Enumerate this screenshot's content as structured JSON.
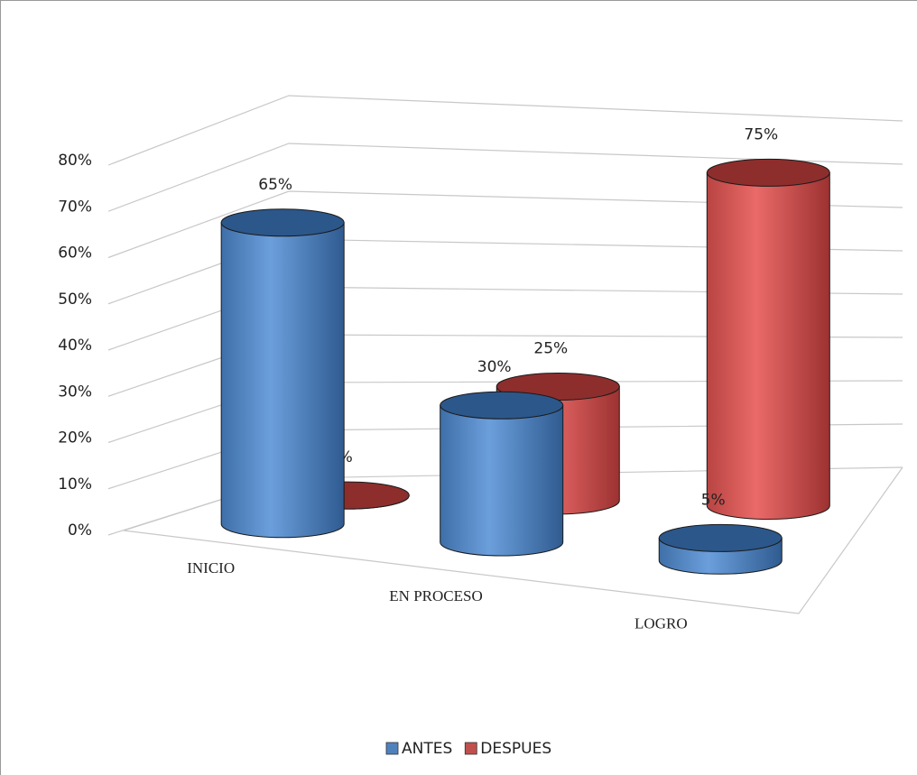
{
  "chart_data": {
    "type": "bar3d_cylinder",
    "categories": [
      "INICIO",
      "EN PROCESO",
      "LOGRO"
    ],
    "series": [
      {
        "name": "ANTES",
        "color": "#4f81bd",
        "values": [
          65,
          30,
          5
        ],
        "value_labels": [
          "65%",
          "30%",
          "5%"
        ]
      },
      {
        "name": "DESPUES",
        "color": "#c0504d",
        "values": [
          0,
          25,
          75
        ],
        "value_labels": [
          "0%",
          "25%",
          "75%"
        ]
      }
    ],
    "ylim": [
      0,
      80
    ],
    "yticks": [
      {
        "value": 0,
        "label": "0%"
      },
      {
        "value": 10,
        "label": "10%"
      },
      {
        "value": 20,
        "label": "20%"
      },
      {
        "value": 30,
        "label": "30%"
      },
      {
        "value": 40,
        "label": "40%"
      },
      {
        "value": 50,
        "label": "50%"
      },
      {
        "value": 60,
        "label": "60%"
      },
      {
        "value": 70,
        "label": "70%"
      },
      {
        "value": 80,
        "label": "80%"
      }
    ],
    "grid": true,
    "legend": "bottom"
  }
}
